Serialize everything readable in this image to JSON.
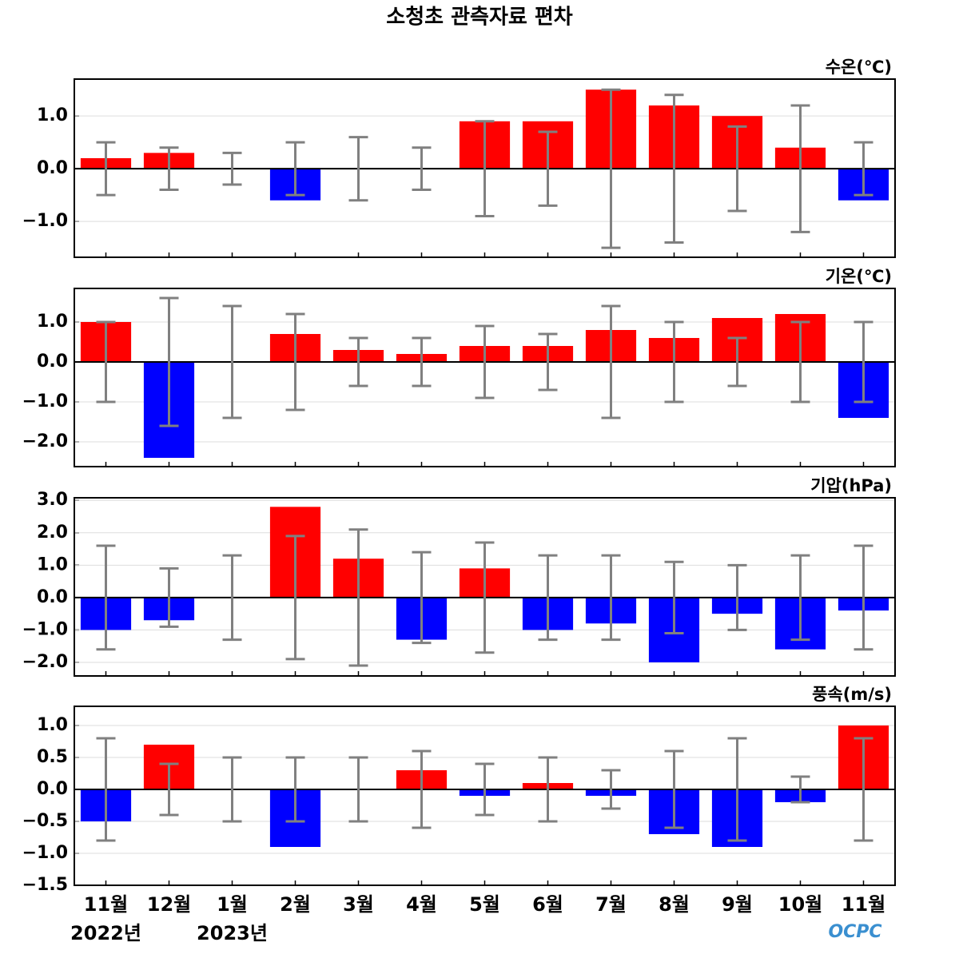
{
  "title": "소청초 관측자료 편차",
  "logo": "OCPC",
  "chart_data": [
    {
      "type": "bar",
      "title": "수온(℃)",
      "grid": true,
      "pos_color": "#ff0000",
      "neg_color": "#0000ff",
      "error_color": "#808080",
      "values": [
        0.2,
        0.3,
        0,
        -0.6,
        0,
        0,
        0.9,
        0.9,
        1.5,
        1.2,
        1.0,
        0.4,
        -0.6
      ],
      "errors": [
        0.5,
        0.4,
        0.3,
        0.5,
        0.6,
        0.4,
        0.9,
        0.7,
        1.5,
        1.4,
        0.8,
        1.2,
        0.5
      ],
      "ylim": [
        -1.68,
        1.7
      ],
      "yticks": [
        {
          "value": -1,
          "label": "−1.0"
        },
        {
          "value": 0,
          "label": "0.0"
        },
        {
          "value": 1,
          "label": "1.0"
        }
      ]
    },
    {
      "type": "bar",
      "title": "기온(℃)",
      "grid": true,
      "pos_color": "#ff0000",
      "neg_color": "#0000ff",
      "error_color": "#808080",
      "values": [
        1.0,
        -2.4,
        0,
        0.7,
        0.3,
        0.2,
        0.4,
        0.4,
        0.8,
        0.6,
        1.1,
        1.2,
        -1.4
      ],
      "errors": [
        1.0,
        1.6,
        1.4,
        1.2,
        0.6,
        0.6,
        0.9,
        0.7,
        1.4,
        1.0,
        0.6,
        1.0,
        1.0
      ],
      "ylim": [
        -2.62,
        1.84
      ],
      "yticks": [
        {
          "value": -2,
          "label": "−2.0"
        },
        {
          "value": -1,
          "label": "−1.0"
        },
        {
          "value": 0,
          "label": "0.0"
        },
        {
          "value": 1,
          "label": "1.0"
        }
      ]
    },
    {
      "type": "bar",
      "title": "기압(hPa)",
      "grid": true,
      "pos_color": "#ff0000",
      "neg_color": "#0000ff",
      "error_color": "#808080",
      "values": [
        -1.0,
        -0.7,
        0,
        2.8,
        1.2,
        -1.3,
        0.9,
        -1.0,
        -0.8,
        -2.0,
        -0.5,
        -1.6,
        -0.4
      ],
      "errors": [
        1.6,
        0.9,
        1.3,
        1.9,
        2.1,
        1.4,
        1.7,
        1.3,
        1.3,
        1.1,
        1.0,
        1.3,
        1.6
      ],
      "ylim": [
        -2.42,
        3.08
      ],
      "yticks": [
        {
          "value": -2,
          "label": "−2.0"
        },
        {
          "value": -1,
          "label": "−1.0"
        },
        {
          "value": 0,
          "label": "0.0"
        },
        {
          "value": 1,
          "label": "1.0"
        },
        {
          "value": 2,
          "label": "2.0"
        },
        {
          "value": 3,
          "label": "3.0"
        }
      ]
    },
    {
      "type": "bar",
      "title": "풍속(m/s)",
      "grid": true,
      "pos_color": "#ff0000",
      "neg_color": "#0000ff",
      "error_color": "#808080",
      "categories": [
        "11월",
        "12월",
        "1월",
        "2월",
        "3월",
        "4월",
        "5월",
        "6월",
        "7월",
        "8월",
        "9월",
        "10월",
        "11월"
      ],
      "x_sublabels": [
        "2022년",
        null,
        "2023년",
        null,
        null,
        null,
        null,
        null,
        null,
        null,
        null,
        null,
        null
      ],
      "values": [
        -0.5,
        0.7,
        0,
        -0.9,
        0,
        0.3,
        -0.1,
        0.1,
        -0.1,
        -0.7,
        -0.9,
        -0.2,
        1.0
      ],
      "errors": [
        0.8,
        0.4,
        0.5,
        0.5,
        0.5,
        0.6,
        0.4,
        0.5,
        0.3,
        0.6,
        0.8,
        0.2,
        0.8
      ],
      "ylim": [
        -1.5,
        1.3
      ],
      "yticks": [
        {
          "value": -1.5,
          "label": "−1.5"
        },
        {
          "value": -1,
          "label": "−1.0"
        },
        {
          "value": -0.5,
          "label": "−0.5"
        },
        {
          "value": 0,
          "label": "0.0"
        },
        {
          "value": 0.5,
          "label": "0.5"
        },
        {
          "value": 1,
          "label": "1.0"
        }
      ]
    }
  ]
}
